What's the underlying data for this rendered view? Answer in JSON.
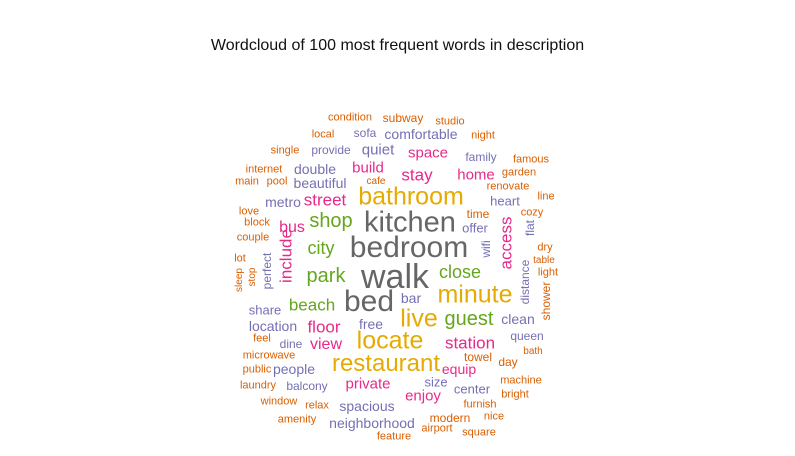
{
  "chart_data": {
    "type": "wordcloud",
    "title": "Wordcloud of 100 most frequent words in description",
    "colors": [
      "#d95f02",
      "#7570b3",
      "#e7298a",
      "#66a61e",
      "#e6ab02",
      "#666666"
    ],
    "words": [
      {
        "text": "walk",
        "weight": 100,
        "color": "#666666",
        "rotated": false
      },
      {
        "text": "bedroom",
        "weight": 95,
        "color": "#666666",
        "rotated": false
      },
      {
        "text": "kitchen",
        "weight": 93,
        "color": "#666666",
        "rotated": false
      },
      {
        "text": "bed",
        "weight": 90,
        "color": "#666666",
        "rotated": false
      },
      {
        "text": "bathroom",
        "weight": 80,
        "color": "#e6ab02",
        "rotated": false
      },
      {
        "text": "restaurant",
        "weight": 78,
        "color": "#e6ab02",
        "rotated": false
      },
      {
        "text": "locate",
        "weight": 76,
        "color": "#e6ab02",
        "rotated": false
      },
      {
        "text": "minute",
        "weight": 74,
        "color": "#e6ab02",
        "rotated": false
      },
      {
        "text": "live",
        "weight": 74,
        "color": "#e6ab02",
        "rotated": false
      },
      {
        "text": "guest",
        "weight": 60,
        "color": "#66a61e",
        "rotated": false
      },
      {
        "text": "shop",
        "weight": 58,
        "color": "#66a61e",
        "rotated": false
      },
      {
        "text": "close",
        "weight": 56,
        "color": "#66a61e",
        "rotated": false
      },
      {
        "text": "park",
        "weight": 55,
        "color": "#66a61e",
        "rotated": false
      },
      {
        "text": "city",
        "weight": 54,
        "color": "#66a61e",
        "rotated": false
      },
      {
        "text": "beach",
        "weight": 52,
        "color": "#66a61e",
        "rotated": false
      },
      {
        "text": "street",
        "weight": 50,
        "color": "#e7298a",
        "rotated": false
      },
      {
        "text": "stay",
        "weight": 50,
        "color": "#e7298a",
        "rotated": false
      },
      {
        "text": "station",
        "weight": 48,
        "color": "#e7298a",
        "rotated": false
      },
      {
        "text": "include",
        "weight": 46,
        "color": "#e7298a",
        "rotated": true
      },
      {
        "text": "access",
        "weight": 46,
        "color": "#e7298a",
        "rotated": true
      },
      {
        "text": "floor",
        "weight": 46,
        "color": "#e7298a",
        "rotated": false
      },
      {
        "text": "view",
        "weight": 45,
        "color": "#e7298a",
        "rotated": false
      },
      {
        "text": "private",
        "weight": 44,
        "color": "#e7298a",
        "rotated": false
      },
      {
        "text": "space",
        "weight": 44,
        "color": "#e7298a",
        "rotated": false
      },
      {
        "text": "bus",
        "weight": 44,
        "color": "#e7298a",
        "rotated": false
      },
      {
        "text": "build",
        "weight": 43,
        "color": "#e7298a",
        "rotated": false
      },
      {
        "text": "home",
        "weight": 42,
        "color": "#e7298a",
        "rotated": false
      },
      {
        "text": "enjoy",
        "weight": 41,
        "color": "#e7298a",
        "rotated": false
      },
      {
        "text": "equip",
        "weight": 41,
        "color": "#e7298a",
        "rotated": false
      },
      {
        "text": "quiet",
        "weight": 40,
        "color": "#7570b3",
        "rotated": false
      },
      {
        "text": "comfortable",
        "weight": 38,
        "color": "#7570b3",
        "rotated": false
      },
      {
        "text": "double",
        "weight": 37,
        "color": "#7570b3",
        "rotated": false
      },
      {
        "text": "beautiful",
        "weight": 36,
        "color": "#7570b3",
        "rotated": false
      },
      {
        "text": "metro",
        "weight": 36,
        "color": "#7570b3",
        "rotated": false
      },
      {
        "text": "heart",
        "weight": 36,
        "color": "#7570b3",
        "rotated": false
      },
      {
        "text": "offer",
        "weight": 36,
        "color": "#7570b3",
        "rotated": false
      },
      {
        "text": "clean",
        "weight": 36,
        "color": "#7570b3",
        "rotated": false
      },
      {
        "text": "location",
        "weight": 36,
        "color": "#7570b3",
        "rotated": false
      },
      {
        "text": "spacious",
        "weight": 36,
        "color": "#7570b3",
        "rotated": false
      },
      {
        "text": "neighborhood",
        "weight": 36,
        "color": "#7570b3",
        "rotated": false
      },
      {
        "text": "people",
        "weight": 35,
        "color": "#7570b3",
        "rotated": false
      },
      {
        "text": "free",
        "weight": 34,
        "color": "#7570b3",
        "rotated": false
      },
      {
        "text": "share",
        "weight": 34,
        "color": "#7570b3",
        "rotated": false
      },
      {
        "text": "bar",
        "weight": 34,
        "color": "#7570b3",
        "rotated": false
      },
      {
        "text": "size",
        "weight": 34,
        "color": "#7570b3",
        "rotated": false
      },
      {
        "text": "family",
        "weight": 33,
        "color": "#7570b3",
        "rotated": false
      },
      {
        "text": "center",
        "weight": 33,
        "color": "#7570b3",
        "rotated": false
      },
      {
        "text": "queen",
        "weight": 33,
        "color": "#7570b3",
        "rotated": false
      },
      {
        "text": "provide",
        "weight": 32,
        "color": "#7570b3",
        "rotated": false
      },
      {
        "text": "sofa",
        "weight": 32,
        "color": "#7570b3",
        "rotated": false
      },
      {
        "text": "balcony",
        "weight": 32,
        "color": "#7570b3",
        "rotated": false
      },
      {
        "text": "dine",
        "weight": 32,
        "color": "#7570b3",
        "rotated": false
      },
      {
        "text": "wifi",
        "weight": 32,
        "color": "#7570b3",
        "rotated": true
      },
      {
        "text": "distance",
        "weight": 32,
        "color": "#7570b3",
        "rotated": true
      },
      {
        "text": "perfect",
        "weight": 32,
        "color": "#7570b3",
        "rotated": true
      },
      {
        "text": "flat",
        "weight": 32,
        "color": "#7570b3",
        "rotated": true
      },
      {
        "text": "subway",
        "weight": 30,
        "color": "#d95f02",
        "rotated": false
      },
      {
        "text": "time",
        "weight": 30,
        "color": "#d95f02",
        "rotated": false
      },
      {
        "text": "towel",
        "weight": 30,
        "color": "#d95f02",
        "rotated": false
      },
      {
        "text": "day",
        "weight": 30,
        "color": "#d95f02",
        "rotated": false
      },
      {
        "text": "modern",
        "weight": 30,
        "color": "#d95f02",
        "rotated": false
      },
      {
        "text": "shower",
        "weight": 30,
        "color": "#d95f02",
        "rotated": true
      },
      {
        "text": "condition",
        "weight": 28,
        "color": "#d95f02",
        "rotated": false
      },
      {
        "text": "studio",
        "weight": 28,
        "color": "#d95f02",
        "rotated": false
      },
      {
        "text": "local",
        "weight": 28,
        "color": "#d95f02",
        "rotated": false
      },
      {
        "text": "night",
        "weight": 28,
        "color": "#d95f02",
        "rotated": false
      },
      {
        "text": "single",
        "weight": 28,
        "color": "#d95f02",
        "rotated": false
      },
      {
        "text": "famous",
        "weight": 28,
        "color": "#d95f02",
        "rotated": false
      },
      {
        "text": "internet",
        "weight": 28,
        "color": "#d95f02",
        "rotated": false
      },
      {
        "text": "garden",
        "weight": 28,
        "color": "#d95f02",
        "rotated": false
      },
      {
        "text": "main",
        "weight": 28,
        "color": "#d95f02",
        "rotated": false
      },
      {
        "text": "pool",
        "weight": 28,
        "color": "#d95f02",
        "rotated": false
      },
      {
        "text": "cafe",
        "weight": 26,
        "color": "#d95f02",
        "rotated": false
      },
      {
        "text": "renovate",
        "weight": 28,
        "color": "#d95f02",
        "rotated": false
      },
      {
        "text": "line",
        "weight": 28,
        "color": "#d95f02",
        "rotated": false
      },
      {
        "text": "love",
        "weight": 28,
        "color": "#d95f02",
        "rotated": false
      },
      {
        "text": "cozy",
        "weight": 28,
        "color": "#d95f02",
        "rotated": false
      },
      {
        "text": "block",
        "weight": 28,
        "color": "#d95f02",
        "rotated": false
      },
      {
        "text": "couple",
        "weight": 28,
        "color": "#d95f02",
        "rotated": false
      },
      {
        "text": "dry",
        "weight": 28,
        "color": "#d95f02",
        "rotated": false
      },
      {
        "text": "lot",
        "weight": 28,
        "color": "#d95f02",
        "rotated": false
      },
      {
        "text": "table",
        "weight": 26,
        "color": "#d95f02",
        "rotated": false
      },
      {
        "text": "light",
        "weight": 28,
        "color": "#d95f02",
        "rotated": false
      },
      {
        "text": "sleep",
        "weight": 26,
        "color": "#d95f02",
        "rotated": true
      },
      {
        "text": "stop",
        "weight": 26,
        "color": "#d95f02",
        "rotated": true
      },
      {
        "text": "feel",
        "weight": 28,
        "color": "#d95f02",
        "rotated": false
      },
      {
        "text": "bath",
        "weight": 26,
        "color": "#d95f02",
        "rotated": false
      },
      {
        "text": "microwave",
        "weight": 28,
        "color": "#d95f02",
        "rotated": false
      },
      {
        "text": "public",
        "weight": 28,
        "color": "#d95f02",
        "rotated": false
      },
      {
        "text": "machine",
        "weight": 28,
        "color": "#d95f02",
        "rotated": false
      },
      {
        "text": "laundry",
        "weight": 28,
        "color": "#d95f02",
        "rotated": false
      },
      {
        "text": "bright",
        "weight": 28,
        "color": "#d95f02",
        "rotated": false
      },
      {
        "text": "window",
        "weight": 28,
        "color": "#d95f02",
        "rotated": false
      },
      {
        "text": "relax",
        "weight": 28,
        "color": "#d95f02",
        "rotated": false
      },
      {
        "text": "furnish",
        "weight": 28,
        "color": "#d95f02",
        "rotated": false
      },
      {
        "text": "amenity",
        "weight": 28,
        "color": "#d95f02",
        "rotated": false
      },
      {
        "text": "nice",
        "weight": 28,
        "color": "#d95f02",
        "rotated": false
      },
      {
        "text": "airport",
        "weight": 28,
        "color": "#d95f02",
        "rotated": false
      },
      {
        "text": "square",
        "weight": 28,
        "color": "#d95f02",
        "rotated": false
      },
      {
        "text": "feature",
        "weight": 28,
        "color": "#d95f02",
        "rotated": false
      }
    ]
  }
}
